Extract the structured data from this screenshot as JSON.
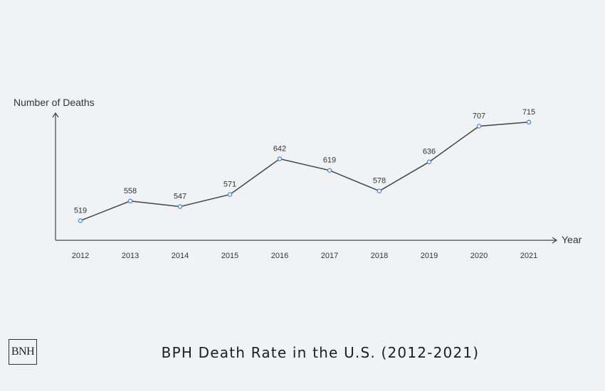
{
  "brand": {
    "logo_text": "BNH"
  },
  "caption": "BPH Death Rate in the U.S. (2012-2021)",
  "chart_data": {
    "type": "line",
    "title": "",
    "xlabel": "Year",
    "ylabel": "Number of Deaths",
    "categories": [
      "2012",
      "2013",
      "2014",
      "2015",
      "2016",
      "2017",
      "2018",
      "2019",
      "2020",
      "2021"
    ],
    "series": [
      {
        "values": [
          519,
          558,
          547,
          571,
          642,
          619,
          578,
          636,
          707,
          715
        ]
      }
    ],
    "ylim": [
      480,
      760
    ],
    "grid": false,
    "data_labels": true,
    "colors": {
      "line": "#444444",
      "marker_stroke": "#4a86e8",
      "marker_fill": "#ffffff",
      "axis": "#444444"
    }
  }
}
